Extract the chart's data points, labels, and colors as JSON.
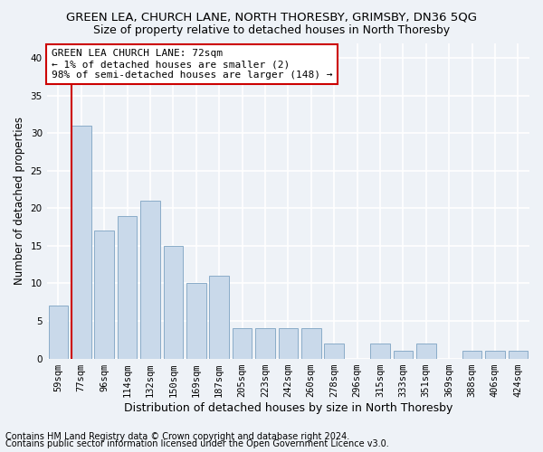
{
  "title": "GREEN LEA, CHURCH LANE, NORTH THORESBY, GRIMSBY, DN36 5QG",
  "subtitle": "Size of property relative to detached houses in North Thoresby",
  "xlabel": "Distribution of detached houses by size in North Thoresby",
  "ylabel": "Number of detached properties",
  "categories": [
    "59sqm",
    "77sqm",
    "96sqm",
    "114sqm",
    "132sqm",
    "150sqm",
    "169sqm",
    "187sqm",
    "205sqm",
    "223sqm",
    "242sqm",
    "260sqm",
    "278sqm",
    "296sqm",
    "315sqm",
    "333sqm",
    "351sqm",
    "369sqm",
    "388sqm",
    "406sqm",
    "424sqm"
  ],
  "values": [
    7,
    31,
    17,
    19,
    21,
    15,
    10,
    11,
    4,
    4,
    4,
    4,
    2,
    0,
    2,
    1,
    2,
    0,
    1,
    1,
    1
  ],
  "bar_color": "#c9d9ea",
  "bar_edge_color": "#8aacc8",
  "highlight_line_color": "#cc0000",
  "annotation_text": "GREEN LEA CHURCH LANE: 72sqm\n← 1% of detached houses are smaller (2)\n98% of semi-detached houses are larger (148) →",
  "annotation_box_facecolor": "#ffffff",
  "annotation_box_edgecolor": "#cc0000",
  "ylim": [
    0,
    42
  ],
  "yticks": [
    0,
    5,
    10,
    15,
    20,
    25,
    30,
    35,
    40
  ],
  "background_color": "#eef2f7",
  "grid_color": "#ffffff",
  "footer_line1": "Contains HM Land Registry data © Crown copyright and database right 2024.",
  "footer_line2": "Contains public sector information licensed under the Open Government Licence v3.0.",
  "title_fontsize": 9.5,
  "subtitle_fontsize": 9,
  "xlabel_fontsize": 9,
  "ylabel_fontsize": 8.5,
  "tick_fontsize": 7.5,
  "annotation_fontsize": 8,
  "footer_fontsize": 7
}
